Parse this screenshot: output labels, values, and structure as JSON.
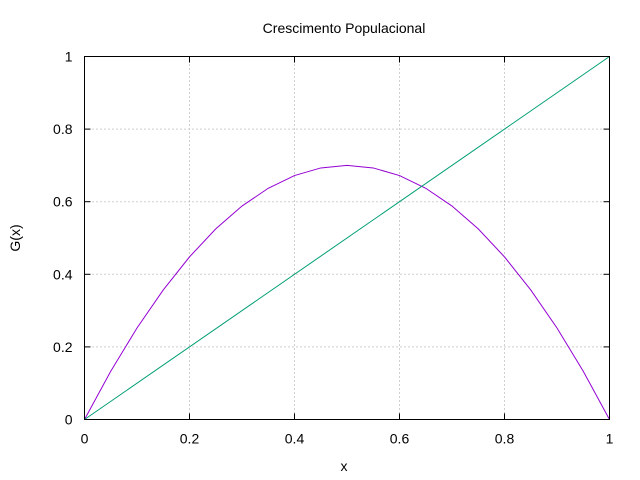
{
  "chart_data": {
    "type": "line",
    "title": "Crescimento Populacional",
    "xlabel": "x",
    "ylabel": "G(x)",
    "xlim": [
      0,
      1
    ],
    "ylim": [
      0,
      1
    ],
    "grid": true,
    "legend": "none",
    "x_ticks": [
      "0",
      "0.2",
      "0.4",
      "0.6",
      "0.8",
      "1"
    ],
    "y_ticks": [
      "0",
      "0.2",
      "0.4",
      "0.6",
      "0.8",
      "1"
    ],
    "series": [
      {
        "color": "#9400d3",
        "x": [
          0,
          0.05,
          0.1,
          0.15,
          0.2,
          0.25,
          0.3,
          0.35,
          0.4,
          0.45,
          0.5,
          0.55,
          0.6,
          0.65,
          0.7,
          0.75,
          0.8,
          0.85,
          0.9,
          0.95,
          1
        ],
        "y": [
          0,
          0.133,
          0.252,
          0.357,
          0.448,
          0.525,
          0.588,
          0.637,
          0.672,
          0.693,
          0.7,
          0.693,
          0.672,
          0.637,
          0.588,
          0.525,
          0.448,
          0.357,
          0.252,
          0.133,
          0
        ]
      },
      {
        "color": "#009e73",
        "x": [
          0,
          1
        ],
        "y": [
          0,
          1
        ]
      }
    ]
  }
}
